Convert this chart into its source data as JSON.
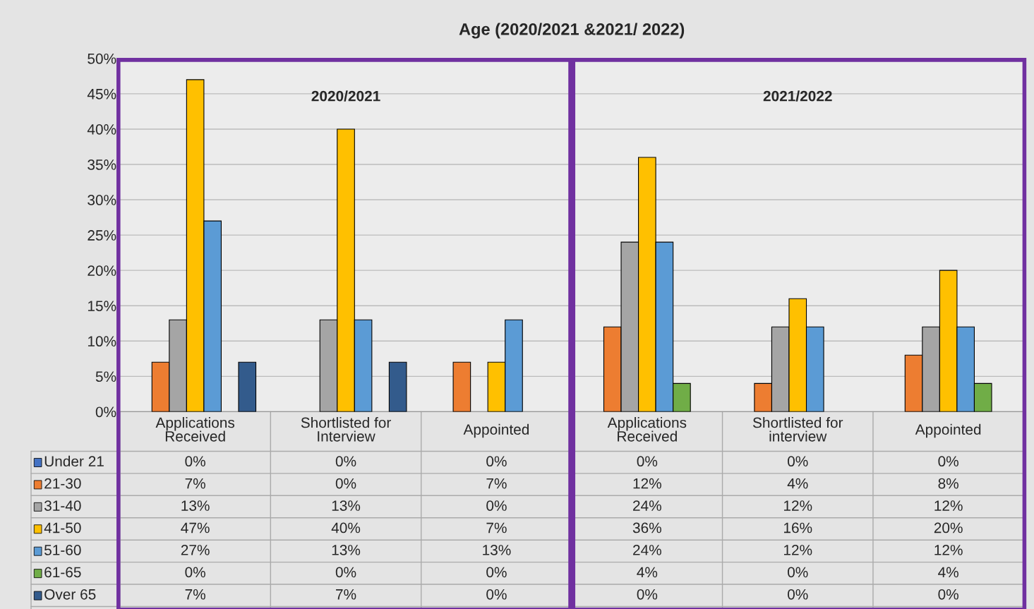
{
  "chart_data": {
    "type": "bar",
    "title": "Age (2020/2021 &2021/ 2022)",
    "categories": [
      "Applications Received",
      "Shortlisted for Interview",
      "Appointed",
      "Applications Received",
      "Shortlisted for interview",
      "Appointed"
    ],
    "series": [
      {
        "name": "Under 21",
        "color": "#4472c4",
        "values": [
          0,
          0,
          0,
          0,
          0,
          0
        ],
        "value_labels": [
          "0%",
          "0%",
          "0%",
          "0%",
          "0%",
          "0%"
        ]
      },
      {
        "name": "21-30",
        "color": "#ed7d31",
        "values": [
          7,
          0,
          7,
          12,
          4,
          8
        ],
        "value_labels": [
          "7%",
          "0%",
          "7%",
          "12%",
          "4%",
          "8%"
        ]
      },
      {
        "name": "31-40",
        "color": "#a5a5a5",
        "values": [
          13,
          13,
          0,
          24,
          12,
          12
        ],
        "value_labels": [
          "13%",
          "13%",
          "0%",
          "24%",
          "12%",
          "12%"
        ]
      },
      {
        "name": "41-50",
        "color": "#ffc000",
        "values": [
          47,
          40,
          7,
          36,
          16,
          20
        ],
        "value_labels": [
          "47%",
          "40%",
          "7%",
          "36%",
          "16%",
          "20%"
        ]
      },
      {
        "name": "51-60",
        "color": "#5b9bd5",
        "values": [
          27,
          13,
          13,
          24,
          12,
          12
        ],
        "value_labels": [
          "27%",
          "13%",
          "13%",
          "24%",
          "12%",
          "12%"
        ]
      },
      {
        "name": "61-65",
        "color": "#70ad47",
        "values": [
          0,
          0,
          0,
          4,
          0,
          4
        ],
        "value_labels": [
          "0%",
          "0%",
          "0%",
          "4%",
          "0%",
          "4%"
        ]
      },
      {
        "name": "Over 65",
        "color": "#335b8c",
        "values": [
          7,
          7,
          0,
          0,
          0,
          0
        ],
        "value_labels": [
          "7%",
          "7%",
          "0%",
          "0%",
          "0%",
          "0%"
        ]
      }
    ],
    "ylim": [
      0,
      50
    ],
    "yticks": [
      {
        "value": 0,
        "label": "0%"
      },
      {
        "value": 5,
        "label": "5%"
      },
      {
        "value": 10,
        "label": "10%"
      },
      {
        "value": 15,
        "label": "15%"
      },
      {
        "value": 20,
        "label": "20%"
      },
      {
        "value": 25,
        "label": "25%"
      },
      {
        "value": 30,
        "label": "30%"
      },
      {
        "value": 35,
        "label": "35%"
      },
      {
        "value": 40,
        "label": "40%"
      },
      {
        "value": 45,
        "label": "45%"
      },
      {
        "value": 50,
        "label": "50%"
      }
    ],
    "grid": "y",
    "legend": "bottom left",
    "annotations": [
      "2020/2021",
      "2021/2022"
    ]
  }
}
